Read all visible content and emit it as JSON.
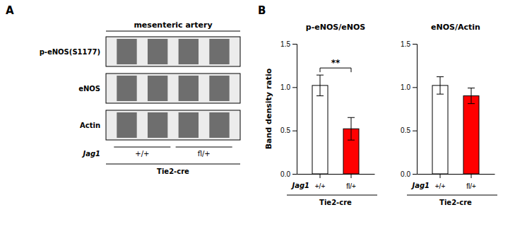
{
  "panel_labels": [
    "A",
    "B"
  ],
  "blot": {
    "title": "mesenteric artery",
    "rows": [
      "p-eNOS(S1177)",
      "eNOS",
      "Actin"
    ],
    "groups": [
      "+/+",
      "fl/+"
    ],
    "genotype_label": "Jag1",
    "cre_label": "Tie2-cre"
  },
  "chart_data": [
    {
      "type": "bar",
      "title": "p-eNOS/eNOS",
      "ylabel": "Band density ratio",
      "categories": [
        "+/+",
        "fl/+"
      ],
      "values": [
        1.02,
        0.52
      ],
      "errors": [
        0.12,
        0.13
      ],
      "colors": [
        "white",
        "red"
      ],
      "ylim": [
        0.0,
        1.5
      ],
      "yticks": [
        {
          "value": 0.0,
          "label": "0.0"
        },
        {
          "value": 0.5,
          "label": "0.5"
        },
        {
          "value": 1.0,
          "label": "1.0"
        },
        {
          "value": 1.5,
          "label": "1.5"
        }
      ],
      "annotations": [
        "**"
      ],
      "x_row_label": "Jag1",
      "xlabel": "Tie2-cre"
    },
    {
      "type": "bar",
      "title": "eNOS/Actin",
      "categories": [
        "+/+",
        "fl/+"
      ],
      "values": [
        1.02,
        0.9
      ],
      "errors": [
        0.1,
        0.09
      ],
      "colors": [
        "white",
        "red"
      ],
      "ylim": [
        0.0,
        1.5
      ],
      "yticks": [
        {
          "value": 0.0,
          "label": "0.0"
        },
        {
          "value": 0.5,
          "label": "0.5"
        },
        {
          "value": 1.0,
          "label": "1.0"
        },
        {
          "value": 1.5,
          "label": "1.5"
        }
      ],
      "x_row_label": "Jag1",
      "xlabel": "Tie2-cre"
    }
  ]
}
